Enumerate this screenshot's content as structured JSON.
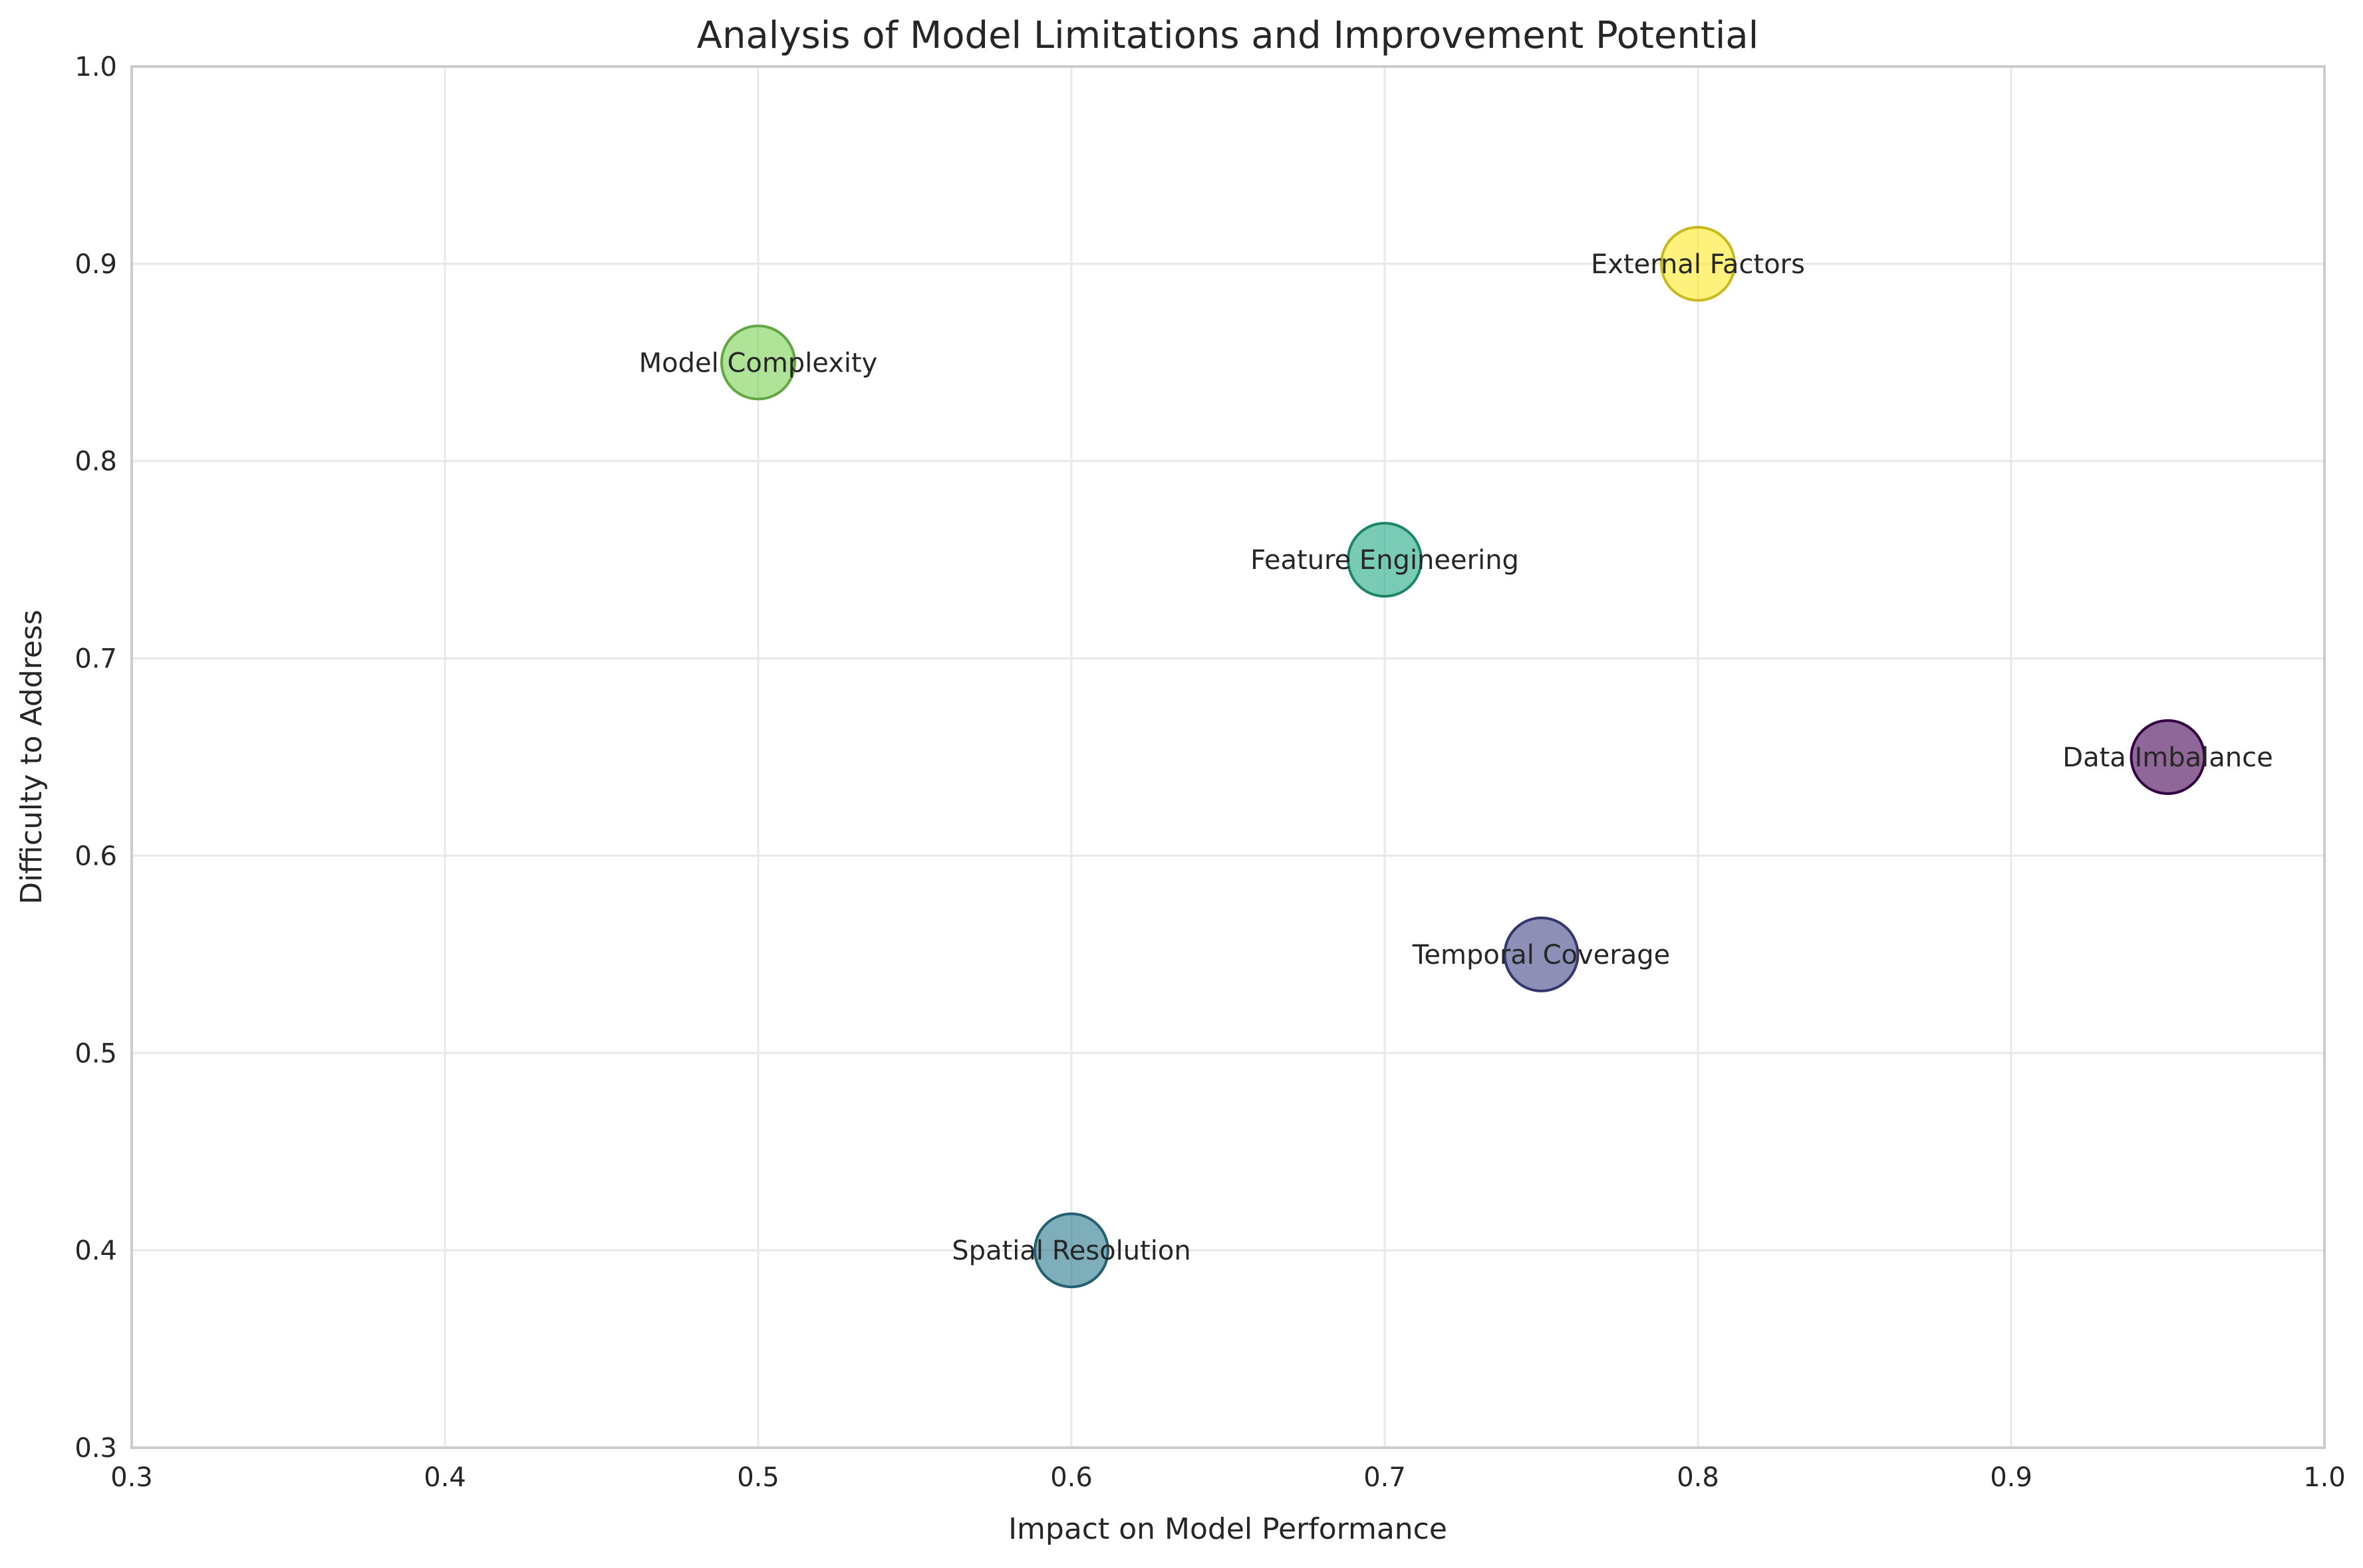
{
  "chart_data": {
    "type": "scatter",
    "title": "Analysis of Model Limitations and Improvement Potential",
    "xlabel": "Impact on Model Performance",
    "ylabel": "Difficulty to Address",
    "xlim": [
      0.3,
      1.0
    ],
    "ylim": [
      0.3,
      1.0
    ],
    "xticks": [
      "0.3",
      "0.4",
      "0.5",
      "0.6",
      "0.7",
      "0.8",
      "0.9",
      "1.0"
    ],
    "yticks": [
      "0.3",
      "0.4",
      "0.5",
      "0.6",
      "0.7",
      "0.8",
      "0.9",
      "1.0"
    ],
    "grid": true,
    "colormap": "viridis",
    "points": [
      {
        "label": "Data Imbalance",
        "x": 0.95,
        "y": 0.65,
        "color": "#440154"
      },
      {
        "label": "Temporal Coverage",
        "x": 0.75,
        "y": 0.55,
        "color": "#414487"
      },
      {
        "label": "Spatial Resolution",
        "x": 0.6,
        "y": 0.4,
        "color": "#2a788e"
      },
      {
        "label": "Feature Engineering",
        "x": 0.7,
        "y": 0.75,
        "color": "#22a884"
      },
      {
        "label": "Model Complexity",
        "x": 0.5,
        "y": 0.85,
        "color": "#7ad151"
      },
      {
        "label": "External Factors",
        "x": 0.8,
        "y": 0.9,
        "color": "#fde725"
      }
    ]
  }
}
